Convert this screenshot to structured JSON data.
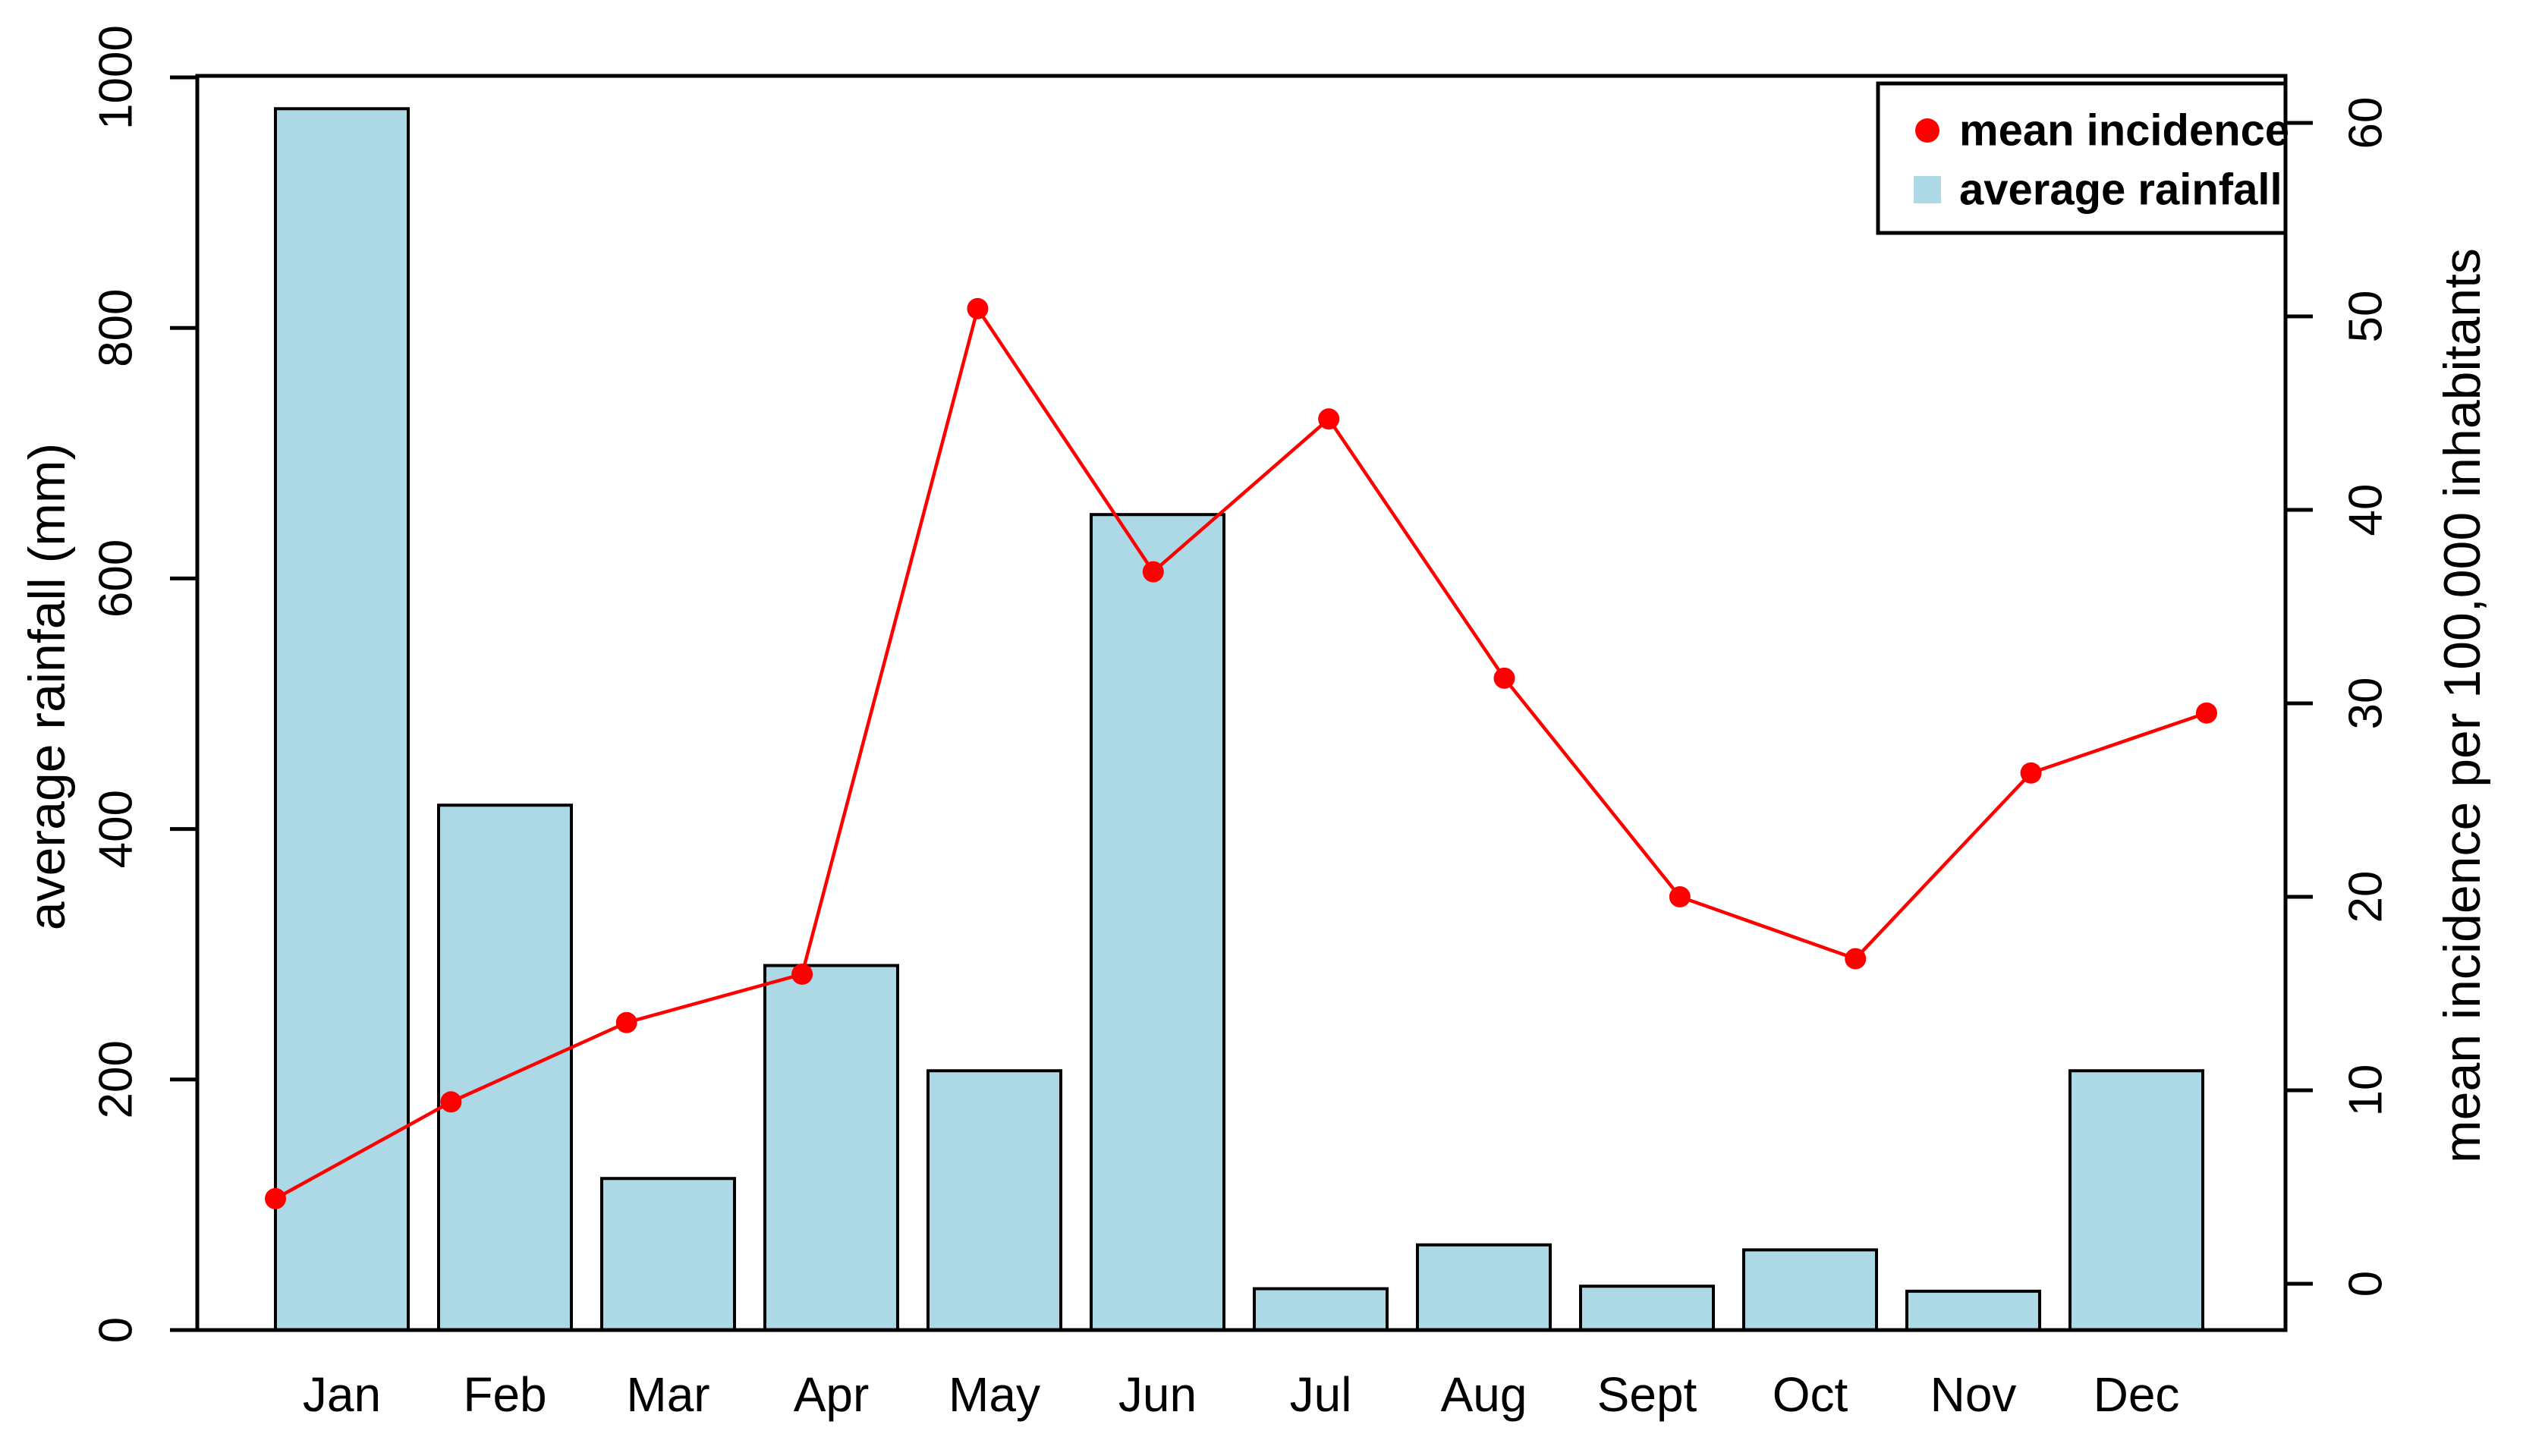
{
  "figure": {
    "background": "#ffffff",
    "axis_color": "#000000"
  },
  "chart_data": {
    "type": "bar",
    "subtype": "dual-axis bar + line",
    "title": "",
    "categories": [
      "Jan",
      "Feb",
      "Mar",
      "Apr",
      "May",
      "Jun",
      "Jul",
      "Aug",
      "Sept",
      "Oct",
      "Nov",
      "Dec"
    ],
    "series": [
      {
        "name": "average rainfall",
        "type": "bar",
        "axis": "left",
        "color": "#ADD8E6",
        "border_color": "#000000",
        "values": [
          975,
          419,
          121,
          291,
          207,
          651,
          33,
          68,
          35,
          64,
          31,
          207
        ]
      },
      {
        "name": "mean incidence",
        "type": "line",
        "axis": "right",
        "color": "#FF0000",
        "marker": "circle",
        "values": [
          4.4,
          9.4,
          13.5,
          16.0,
          50.4,
          36.8,
          44.7,
          31.3,
          20.0,
          16.8,
          26.4,
          29.5
        ]
      }
    ],
    "left_axis": {
      "label": "average rainfall (mm)",
      "ticks": [
        0,
        200,
        400,
        600,
        800,
        1000
      ],
      "range": [
        0,
        1000
      ]
    },
    "right_axis": {
      "label": "mean incidence per 100,000 inhabitants",
      "ticks": [
        0,
        10,
        20,
        30,
        40,
        50,
        60
      ],
      "range": [
        0,
        60
      ]
    },
    "x_axis": {
      "label": ""
    },
    "grid": false,
    "legend_position": "top-right",
    "legend": [
      {
        "label": "mean incidence",
        "marker": "circle",
        "marker_color": "#FF0000",
        "text_color": "#FF0000"
      },
      {
        "label": "average rainfall",
        "marker": "square",
        "marker_color": "#ADD8E6",
        "text_color": "#0000FF"
      }
    ]
  }
}
